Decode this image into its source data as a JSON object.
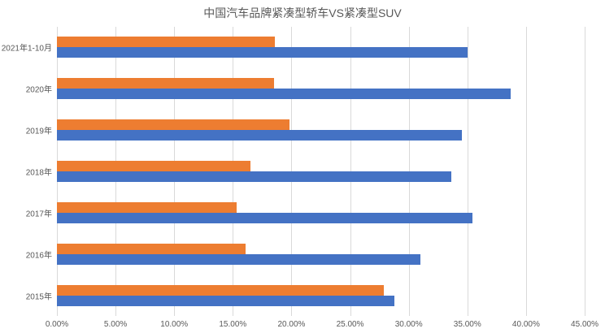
{
  "title": "中国汽车品牌紧凑型轿车VS紧凑型SUV",
  "chart_data": {
    "type": "bar",
    "orientation": "horizontal",
    "title": "中国汽车品牌紧凑型轿车VS紧凑型SUV",
    "categories": [
      "2021年1-10月",
      "2020年",
      "2019年",
      "2018年",
      "2017年",
      "2016年",
      "2015年"
    ],
    "series": [
      {
        "name": "orange",
        "color": "#ED7D31",
        "values": [
          18.6,
          18.5,
          19.8,
          16.5,
          15.3,
          16.1,
          27.9
        ]
      },
      {
        "name": "blue",
        "color": "#4472C4",
        "values": [
          35.0,
          38.7,
          34.5,
          33.6,
          35.4,
          31.0,
          28.8
        ]
      }
    ],
    "x_axis": {
      "min": 0,
      "max": 45,
      "step": 5,
      "tick_labels": [
        "0.00%",
        "5.00%",
        "10.00%",
        "15.00%",
        "20.00%",
        "25.00%",
        "30.00%",
        "35.00%",
        "40.00%",
        "45.00%"
      ]
    },
    "grid": true,
    "legend": "none",
    "colors": {
      "gridline": "#D9D9D9",
      "axis_text": "#595959",
      "title_text": "#595959",
      "background": "#FFFFFF"
    }
  }
}
